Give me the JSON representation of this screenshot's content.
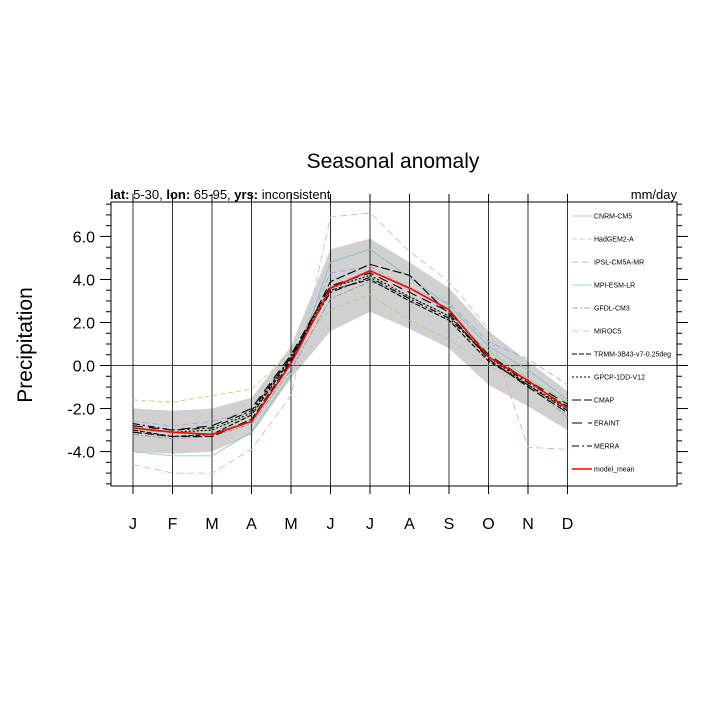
{
  "chart_data": {
    "type": "line",
    "title": "Seasonal anomaly",
    "subtitle_parts": [
      {
        "label": "lat:",
        "value": " 5-30, "
      },
      {
        "label": "lon:",
        "value": " 65-95, "
      },
      {
        "label": "yrs:",
        "value": " inconsistent"
      }
    ],
    "units": "mm/day",
    "ylabel": "Precipitation",
    "xlabel": "",
    "ylim": [
      -5.6,
      7.6
    ],
    "yticks": [
      6.0,
      4.0,
      2.0,
      0.0,
      -2.0,
      -4.0
    ],
    "ytick_labels": [
      "6.0",
      "4.0",
      "2.0",
      "0.0",
      "-2.0",
      "-4.0"
    ],
    "categories": [
      "J",
      "F",
      "M",
      "A",
      "M",
      "J",
      "J",
      "A",
      "S",
      "O",
      "N",
      "D"
    ],
    "grid": "vertical lines at each month, horizontal line at 0",
    "legend_position": "right (inside plot)",
    "band": {
      "color": "#d0d0d0",
      "upper": [
        -2.0,
        -2.1,
        -2.0,
        -1.5,
        0.9,
        5.4,
        5.9,
        4.8,
        3.6,
        1.6,
        0.2,
        -1.2
      ],
      "lower": [
        -4.0,
        -4.1,
        -4.0,
        -3.2,
        -0.6,
        1.6,
        2.5,
        1.7,
        0.8,
        -0.9,
        -1.9,
        -3.0
      ]
    },
    "series": [
      {
        "name": "CNRM-CM5",
        "color": "#90d090",
        "dash": "none",
        "width": 0.8,
        "values": [
          -3.0,
          -3.1,
          -3.0,
          -2.3,
          0.4,
          3.7,
          4.1,
          3.0,
          2.1,
          0.7,
          -0.6,
          -1.7
        ]
      },
      {
        "name": "HadGEM2-A",
        "color": "#c8c870",
        "dash": "5,3",
        "width": 0.8,
        "values": [
          -1.6,
          -1.7,
          -1.4,
          -1.1,
          0.6,
          2.6,
          3.3,
          2.1,
          1.2,
          0.0,
          -1.0,
          -2.0
        ]
      },
      {
        "name": "IPSL-CM5A-MR",
        "color": "#a0a0d8",
        "dash": "6,4",
        "width": 0.8,
        "values": [
          -2.6,
          -2.8,
          -2.6,
          -2.1,
          0.2,
          4.3,
          4.6,
          3.6,
          2.9,
          1.1,
          0.3,
          -0.9
        ]
      },
      {
        "name": "MPI-ESM-LR",
        "color": "#80c0c0",
        "dash": "none",
        "width": 0.8,
        "values": [
          -4.0,
          -4.2,
          -4.2,
          -3.1,
          -0.4,
          4.8,
          5.4,
          4.1,
          2.8,
          0.9,
          -0.2,
          -1.6
        ]
      },
      {
        "name": "GFDL-CM3",
        "color": "#909090",
        "dash": "6,2,2,2",
        "width": 0.8,
        "values": [
          -3.2,
          -3.4,
          -3.3,
          -2.7,
          -0.2,
          3.1,
          3.9,
          3.2,
          2.3,
          0.3,
          -0.9,
          -2.4
        ]
      },
      {
        "name": "MIROC5",
        "color": "#e0a0e0",
        "dash": "7,4",
        "width": 0.8,
        "values": [
          -4.6,
          -5.0,
          -5.0,
          -3.9,
          -1.4,
          6.9,
          7.1,
          5.3,
          3.9,
          1.7,
          -3.8,
          -3.9
        ]
      },
      {
        "name": "TRMM-3B43-v7-0.25deg",
        "color": "#000000",
        "dash": "5,2",
        "width": 1.1,
        "values": [
          -3.0,
          -3.3,
          -3.2,
          -2.3,
          0.3,
          3.5,
          4.0,
          3.0,
          2.1,
          0.2,
          -0.9,
          -2.1
        ]
      },
      {
        "name": "GPCP-1DD-V12",
        "color": "#000000",
        "dash": "2,2",
        "width": 1.1,
        "values": [
          -2.9,
          -3.1,
          -3.0,
          -2.2,
          0.4,
          3.6,
          4.2,
          3.2,
          2.3,
          0.4,
          -0.9,
          -2.0
        ]
      },
      {
        "name": "CMAP",
        "color": "#000000",
        "dash": "9,3",
        "width": 1.1,
        "values": [
          -3.1,
          -3.3,
          -3.3,
          -2.5,
          0.2,
          3.9,
          4.7,
          4.2,
          2.4,
          0.3,
          -1.0,
          -2.2
        ]
      },
      {
        "name": "ERAINT",
        "color": "#000000",
        "dash": "10,6",
        "width": 1.1,
        "values": [
          -2.8,
          -3.0,
          -2.8,
          -2.0,
          0.5,
          3.7,
          4.3,
          3.4,
          2.5,
          0.5,
          -0.7,
          -1.8
        ]
      },
      {
        "name": "MERRA",
        "color": "#000000",
        "dash": "7,3,2,3",
        "width": 1.1,
        "values": [
          -2.7,
          -3.0,
          -2.9,
          -2.1,
          0.4,
          3.4,
          4.1,
          3.1,
          2.2,
          0.4,
          -0.8,
          -1.9
        ]
      },
      {
        "name": "model_mean",
        "color": "#ff0000",
        "dash": "none",
        "width": 1.6,
        "values": [
          -2.9,
          -3.1,
          -3.2,
          -2.6,
          0.1,
          3.6,
          4.4,
          3.6,
          2.6,
          0.4,
          -0.7,
          -2.0
        ]
      }
    ]
  }
}
